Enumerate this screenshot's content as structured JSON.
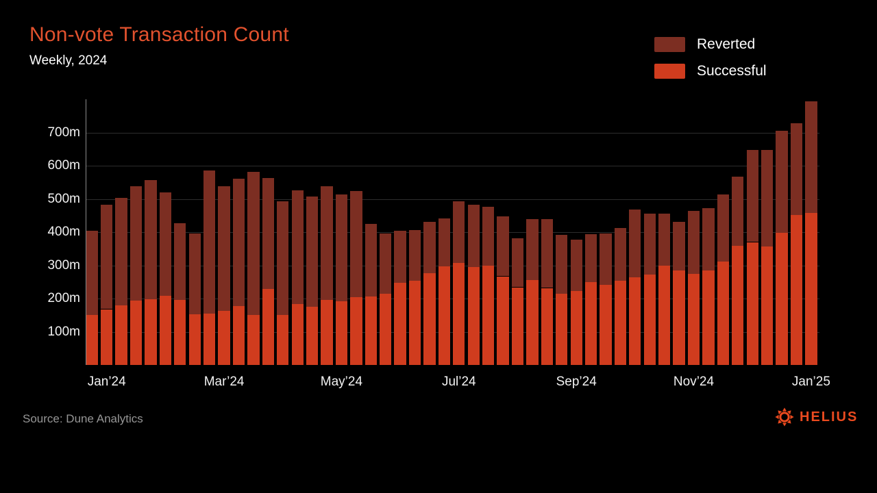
{
  "header": {
    "title": "Non-vote Transaction Count",
    "subtitle": "Weekly, 2024"
  },
  "legend": [
    {
      "label": "Reverted",
      "color": "#7c2e22"
    },
    {
      "label": "Successful",
      "color": "#d03c1e"
    }
  ],
  "footer": {
    "source": "Source: Dune Analytics",
    "brand": "HELIUS"
  },
  "colors": {
    "background": "#000000",
    "title": "#e2522e",
    "successful": "#d03c1e",
    "reverted": "#7c2e22",
    "gridline": "#2d2d2d",
    "axis_line": "#8c8c8c",
    "tick_label": "#f2f2f2",
    "source_text": "#969696",
    "brand": "#ea4a1f"
  },
  "chart_data": {
    "type": "bar",
    "stacked": true,
    "title": "Non-vote Transaction Count",
    "subtitle": "Weekly, 2024",
    "unit": "millions of transactions per week",
    "ylim": [
      0,
      800
    ],
    "grid": "horizontal",
    "legend_position": "top-right",
    "y_ticks": [
      100,
      200,
      300,
      400,
      500,
      600,
      700
    ],
    "y_tick_suffix": "m",
    "x_tick_labels": [
      "Jan’24",
      "Mar’24",
      "May’24",
      "Jul’24",
      "Sep’24",
      "Nov’24",
      "Jan’25"
    ],
    "x_tick_bar_indices": [
      1,
      9,
      17,
      25,
      33,
      41,
      49
    ],
    "series": [
      {
        "name": "Successful",
        "color": "#d03c1e",
        "values": [
          150,
          168,
          179,
          194,
          198,
          209,
          196,
          153,
          155,
          163,
          178,
          151,
          229,
          151,
          183,
          175,
          195,
          192,
          204,
          207,
          215,
          248,
          253,
          277,
          296,
          308,
          294,
          299,
          267,
          234,
          255,
          232,
          215,
          222,
          250,
          241,
          253,
          263,
          272,
          299,
          284,
          275,
          285,
          312,
          359,
          370,
          357,
          398,
          451,
          458
        ]
      },
      {
        "name": "Reverted",
        "color": "#7c2e22",
        "values": [
          255,
          315,
          325,
          345,
          358,
          311,
          230,
          244,
          430,
          375,
          382,
          430,
          335,
          342,
          343,
          333,
          343,
          321,
          320,
          217,
          180,
          157,
          153,
          153,
          145,
          184,
          188,
          177,
          181,
          148,
          185,
          208,
          176,
          156,
          144,
          155,
          160,
          205,
          183,
          156,
          148,
          190,
          187,
          201,
          209,
          277,
          290,
          308,
          276,
          336
        ]
      }
    ]
  }
}
